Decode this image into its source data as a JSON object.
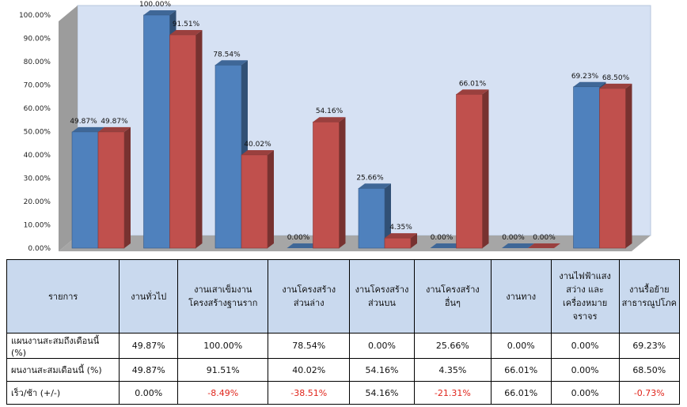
{
  "chart_data": {
    "type": "bar",
    "categories": [
      "งานทั่วไป",
      "งานเสาเข็มงานโครงสร้างฐานราก",
      "งานโครงสร้างส่วนล่าง",
      "งานโครงสร้างส่วนบน",
      "งานโครงสร้างอื่นๆ",
      "งานทาง",
      "งานไฟฟ้าแสงสว่าง และเครื่องหมายจราจร",
      "งานรื้อย้ายสาธารณูปโภค"
    ],
    "series": [
      {
        "name": "แผนงานสะสมถึงเดือนนี้ (%)",
        "values": [
          49.87,
          100.0,
          78.54,
          0.0,
          25.66,
          0.0,
          0.0,
          69.23
        ],
        "labels": [
          "49.87%",
          "100.00%",
          "78.54%",
          "0.00%",
          "25.66%",
          "0.00%",
          "0.00%",
          "69.23%"
        ]
      },
      {
        "name": "ผนงานสะสมเดือนนี้ (%)",
        "values": [
          49.87,
          91.51,
          40.02,
          54.16,
          4.35,
          66.01,
          0.0,
          68.5
        ],
        "labels": [
          "49.87%",
          "91.51%",
          "40.02%",
          "54.16%",
          "4.35%",
          "66.01%",
          "0.00%",
          "68.50%"
        ]
      }
    ],
    "ylim": [
      0,
      100
    ],
    "y_ticks": [
      "0.00%",
      "10.00%",
      "20.00%",
      "30.00%",
      "40.00%",
      "50.00%",
      "60.00%",
      "70.00%",
      "80.00%",
      "90.00%",
      "100.00%"
    ],
    "grid": false,
    "legend": "table below chart",
    "colors": {
      "series1": "#4f81bd",
      "series2": "#c0504d",
      "wall": "#d6e1f3",
      "floor": "#a6a6a6"
    }
  },
  "table": {
    "header": {
      "row_label": "รายการ",
      "columns": [
        [
          "งานทั่วไป"
        ],
        [
          "งานเสาเข็มงาน",
          "โครงสร้างฐานราก"
        ],
        [
          "งานโครงสร้าง",
          "ส่วนล่าง"
        ],
        [
          "งานโครงสร้าง",
          "ส่วนบน"
        ],
        [
          "งานโครงสร้าง",
          "อื่นๆ"
        ],
        [
          "งานทาง"
        ],
        [
          "งานไฟฟ้าแสง",
          "สว่าง และ",
          "เครื่องหมาย",
          "จราจร"
        ],
        [
          "งานรื้อย้าย",
          "สาธารณูปโภค"
        ]
      ]
    },
    "rows": [
      {
        "label": "แผนงานสะสมถึงเดือนนี้ (%)",
        "cells": [
          "49.87%",
          "100.00%",
          "78.54%",
          "0.00%",
          "25.66%",
          "0.00%",
          "0.00%",
          "69.23%"
        ]
      },
      {
        "label": "ผนงานสะสมเดือนนี้ (%)",
        "cells": [
          "49.87%",
          "91.51%",
          "40.02%",
          "54.16%",
          "4.35%",
          "66.01%",
          "0.00%",
          "68.50%"
        ]
      },
      {
        "label": "เร็ว/ช้า (+/-)",
        "cells": [
          "0.00%",
          "-8.49%",
          "-38.51%",
          "54.16%",
          "-21.31%",
          "66.01%",
          "0.00%",
          "-0.73%"
        ]
      }
    ]
  }
}
